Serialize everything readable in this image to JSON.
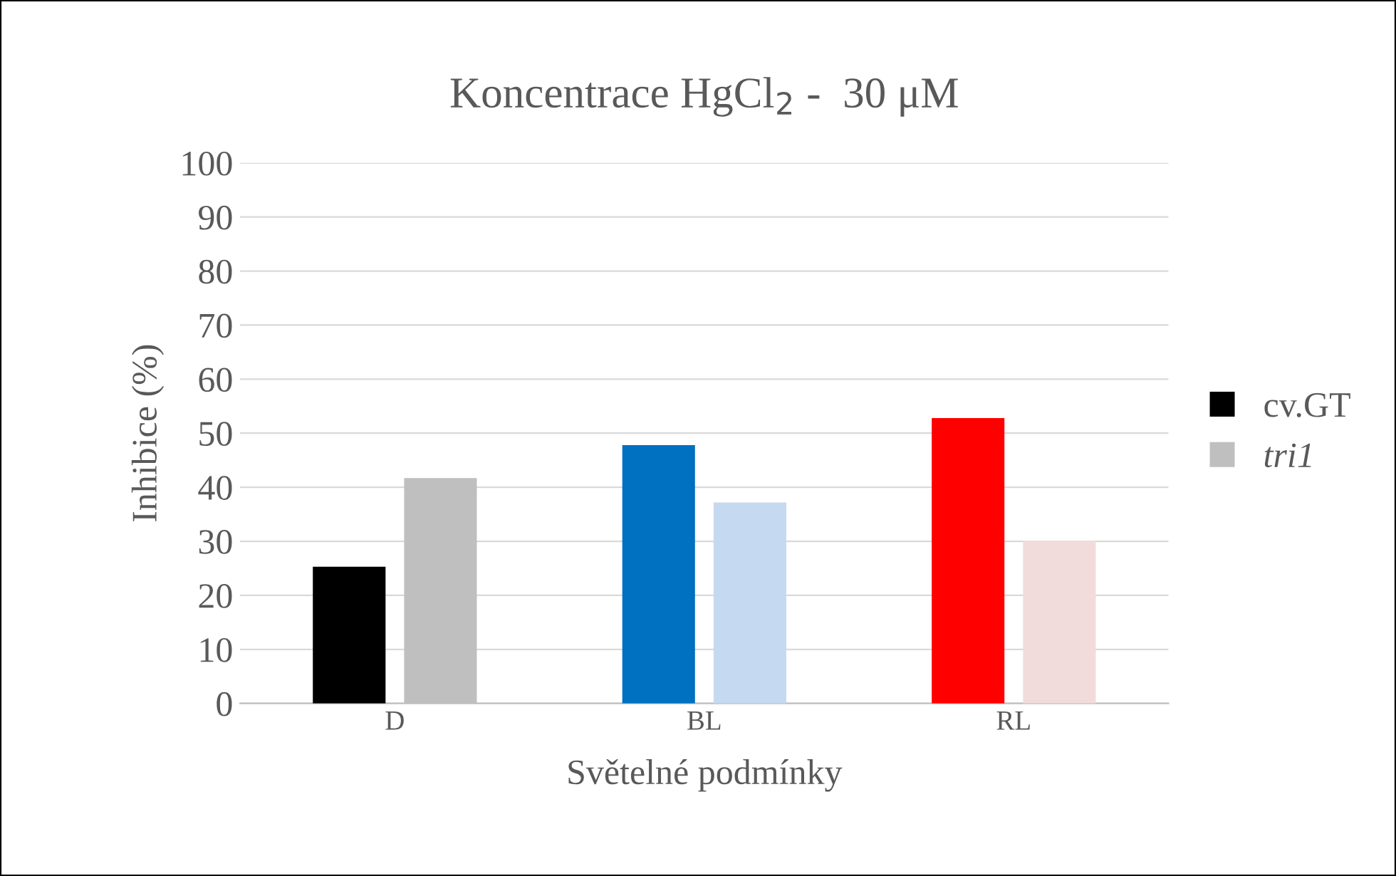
{
  "chart_data": {
    "type": "bar",
    "title": "Koncentrace HgCl$_{2}$ -  30 μM",
    "xlabel": "Světelné podmínky",
    "ylabel": "Inhibice (%)",
    "categories": [
      "D",
      "BL",
      "RL"
    ],
    "series": [
      {
        "name": "cv.GT",
        "color": "#000000",
        "colors": [
          "#000000",
          "#0070c0",
          "#ff0000"
        ],
        "values": [
          25.3,
          47.8,
          52.8
        ]
      },
      {
        "name": "tri1",
        "color": "#bfbfbf",
        "colors": [
          "#bfbfbf",
          "#c5d9f1",
          "#f2dcdb"
        ],
        "values": [
          41.7,
          37.2,
          30.1
        ]
      }
    ],
    "ylim": [
      0,
      100
    ],
    "yticks": [
      0,
      10,
      20,
      30,
      40,
      50,
      60,
      70,
      80,
      90,
      100
    ],
    "grid": "y",
    "legend": "right"
  }
}
